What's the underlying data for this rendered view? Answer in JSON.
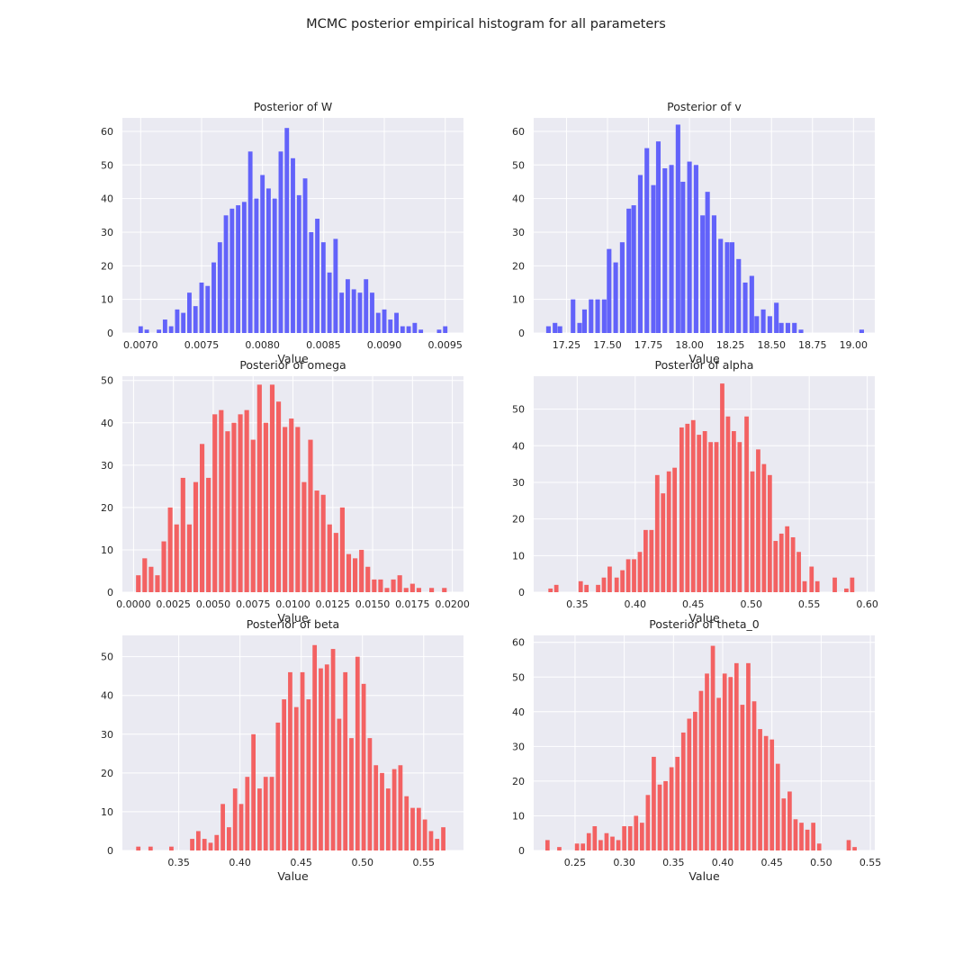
{
  "figure": {
    "title": "MCMC posterior empirical histogram for all parameters"
  },
  "chart_data": [
    {
      "type": "bar",
      "title": "Posterior of W",
      "xlabel": "Value",
      "ylabel": "",
      "color": "#5b5bfa",
      "grid": true,
      "xlim": [
        0.00685,
        0.00965
      ],
      "ylim": [
        0,
        64
      ],
      "xticks": [
        0.007,
        0.0075,
        0.008,
        0.0085,
        0.009,
        0.0095
      ],
      "xtick_labels": [
        "0.0070",
        "0.0075",
        "0.0080",
        "0.0085",
        "0.0090",
        "0.0095"
      ],
      "yticks": [
        0,
        10,
        20,
        30,
        40,
        50,
        60
      ],
      "x": [
        0.007,
        0.00705,
        0.00715,
        0.0072,
        0.00725,
        0.0073,
        0.00735,
        0.0074,
        0.00745,
        0.0075,
        0.00755,
        0.0076,
        0.00765,
        0.0077,
        0.00775,
        0.0078,
        0.00785,
        0.0079,
        0.00795,
        0.008,
        0.00805,
        0.0081,
        0.00815,
        0.0082,
        0.00825,
        0.0083,
        0.00835,
        0.0084,
        0.00845,
        0.0085,
        0.00855,
        0.0086,
        0.00865,
        0.0087,
        0.00875,
        0.0088,
        0.00885,
        0.0089,
        0.00895,
        0.009,
        0.00905,
        0.0091,
        0.00915,
        0.0092,
        0.00925,
        0.0093,
        0.00935,
        0.00945,
        0.0095
      ],
      "values": [
        2,
        1,
        1,
        4,
        2,
        7,
        6,
        12,
        8,
        15,
        14,
        21,
        27,
        35,
        37,
        38,
        39,
        54,
        40,
        47,
        43,
        40,
        54,
        61,
        52,
        41,
        46,
        30,
        34,
        27,
        18,
        28,
        12,
        16,
        13,
        12,
        16,
        12,
        6,
        7,
        4,
        6,
        2,
        2,
        3,
        1,
        0,
        1,
        2
      ],
      "bar_width": 3.6e-05
    },
    {
      "type": "bar",
      "title": "Posterior of v",
      "xlabel": "Value",
      "ylabel": "",
      "color": "#5b5bfa",
      "grid": true,
      "xlim": [
        17.05,
        19.13
      ],
      "ylim": [
        0,
        64
      ],
      "xticks": [
        17.25,
        17.5,
        17.75,
        18.0,
        18.25,
        18.5,
        18.75,
        19.0
      ],
      "xtick_labels": [
        "17.25",
        "17.50",
        "17.75",
        "18.00",
        "18.25",
        "18.50",
        "18.75",
        "19.00"
      ],
      "yticks": [
        0,
        10,
        20,
        30,
        40,
        50,
        60
      ],
      "x": [
        17.14,
        17.18,
        17.21,
        17.29,
        17.33,
        17.36,
        17.4,
        17.44,
        17.48,
        17.51,
        17.55,
        17.59,
        17.63,
        17.66,
        17.7,
        17.74,
        17.78,
        17.81,
        17.85,
        17.89,
        17.93,
        17.96,
        18.0,
        18.04,
        18.08,
        18.11,
        18.15,
        18.19,
        18.23,
        18.26,
        18.3,
        18.34,
        18.38,
        18.41,
        18.45,
        18.49,
        18.53,
        18.56,
        18.6,
        18.64,
        18.68,
        18.71,
        18.75,
        19.05
      ],
      "values": [
        2,
        3,
        2,
        10,
        3,
        7,
        10,
        10,
        10,
        25,
        21,
        27,
        37,
        38,
        47,
        55,
        44,
        57,
        49,
        50,
        62,
        45,
        51,
        50,
        35,
        42,
        35,
        28,
        27,
        27,
        22,
        15,
        17,
        5,
        7,
        5,
        9,
        3,
        3,
        3,
        1,
        0,
        0,
        1
      ],
      "bar_width": 0.028
    },
    {
      "type": "bar",
      "title": "Posterior of omega",
      "xlabel": "Value",
      "ylabel": "",
      "color": "#f35a5a",
      "grid": true,
      "xlim": [
        -0.0007,
        0.0207
      ],
      "ylim": [
        0,
        51
      ],
      "xticks": [
        0.0,
        0.0025,
        0.005,
        0.0075,
        0.01,
        0.0125,
        0.015,
        0.0175,
        0.02
      ],
      "xtick_labels": [
        "0.0000",
        "0.0025",
        "0.0050",
        "0.0075",
        "0.0100",
        "0.0125",
        "0.0150",
        "0.0175",
        "0.0200"
      ],
      "yticks": [
        0,
        10,
        20,
        30,
        40,
        50
      ],
      "x": [
        0.0003,
        0.0007,
        0.0011,
        0.0015,
        0.0019,
        0.0023,
        0.0027,
        0.0031,
        0.0035,
        0.0039,
        0.0043,
        0.0047,
        0.0051,
        0.0055,
        0.0059,
        0.0063,
        0.0067,
        0.0071,
        0.0075,
        0.0079,
        0.0083,
        0.0087,
        0.0091,
        0.0095,
        0.0099,
        0.0103,
        0.0107,
        0.0111,
        0.0115,
        0.0119,
        0.0123,
        0.0127,
        0.0131,
        0.0135,
        0.0139,
        0.0143,
        0.0147,
        0.0151,
        0.0155,
        0.0159,
        0.0163,
        0.0167,
        0.0171,
        0.0175,
        0.0179,
        0.0187,
        0.0195
      ],
      "values": [
        4,
        8,
        6,
        4,
        12,
        20,
        16,
        27,
        16,
        26,
        35,
        27,
        42,
        43,
        38,
        40,
        42,
        43,
        36,
        49,
        40,
        49,
        45,
        39,
        41,
        39,
        26,
        36,
        24,
        23,
        16,
        14,
        20,
        9,
        8,
        10,
        6,
        3,
        3,
        1,
        3,
        4,
        1,
        2,
        1,
        1,
        1
      ],
      "bar_width": 0.00029
    },
    {
      "type": "bar",
      "title": "Posterior of alpha",
      "xlabel": "Value",
      "ylabel": "",
      "color": "#f35a5a",
      "grid": true,
      "xlim": [
        0.3125,
        0.6065
      ],
      "ylim": [
        0,
        59
      ],
      "xticks": [
        0.35,
        0.4,
        0.45,
        0.5,
        0.55,
        0.6
      ],
      "xtick_labels": [
        "0.35",
        "0.40",
        "0.45",
        "0.50",
        "0.55",
        "0.60"
      ],
      "yticks": [
        0,
        10,
        20,
        30,
        40,
        50
      ],
      "x": [
        0.327,
        0.332,
        0.353,
        0.358,
        0.368,
        0.373,
        0.378,
        0.384,
        0.389,
        0.394,
        0.399,
        0.404,
        0.409,
        0.414,
        0.419,
        0.424,
        0.429,
        0.434,
        0.44,
        0.445,
        0.45,
        0.455,
        0.46,
        0.465,
        0.47,
        0.475,
        0.48,
        0.485,
        0.49,
        0.496,
        0.501,
        0.506,
        0.511,
        0.516,
        0.521,
        0.526,
        0.531,
        0.536,
        0.541,
        0.546,
        0.552,
        0.557,
        0.562,
        0.567,
        0.572,
        0.577,
        0.582,
        0.587,
        0.592
      ],
      "values": [
        1,
        2,
        3,
        2,
        2,
        4,
        7,
        4,
        6,
        9,
        9,
        11,
        17,
        17,
        32,
        27,
        33,
        34,
        45,
        46,
        47,
        43,
        44,
        41,
        41,
        57,
        48,
        44,
        41,
        48,
        33,
        39,
        35,
        32,
        14,
        16,
        18,
        15,
        11,
        3,
        7,
        3,
        0,
        0,
        4,
        0,
        1,
        4,
        0
      ],
      "bar_width": 0.0037
    },
    {
      "type": "bar",
      "title": "Posterior of beta",
      "xlabel": "Value",
      "ylabel": "",
      "color": "#f35a5a",
      "grid": true,
      "xlim": [
        0.304,
        0.5825
      ],
      "ylim": [
        0,
        55.5
      ],
      "xticks": [
        0.35,
        0.4,
        0.45,
        0.5,
        0.55
      ],
      "xtick_labels": [
        "0.35",
        "0.40",
        "0.45",
        "0.50",
        "0.55"
      ],
      "yticks": [
        0,
        10,
        20,
        30,
        40,
        50
      ],
      "x": [
        0.317,
        0.327,
        0.344,
        0.361,
        0.366,
        0.371,
        0.376,
        0.381,
        0.386,
        0.391,
        0.396,
        0.401,
        0.406,
        0.411,
        0.416,
        0.421,
        0.426,
        0.431,
        0.436,
        0.441,
        0.446,
        0.451,
        0.456,
        0.461,
        0.466,
        0.471,
        0.476,
        0.481,
        0.486,
        0.491,
        0.496,
        0.501,
        0.506,
        0.511,
        0.516,
        0.521,
        0.526,
        0.531,
        0.536,
        0.541,
        0.546,
        0.551,
        0.556,
        0.561,
        0.566
      ],
      "values": [
        1,
        1,
        1,
        3,
        5,
        3,
        2,
        4,
        12,
        6,
        16,
        12,
        19,
        30,
        16,
        19,
        19,
        33,
        39,
        46,
        37,
        46,
        39,
        53,
        47,
        48,
        52,
        34,
        46,
        29,
        50,
        43,
        29,
        22,
        20,
        16,
        21,
        22,
        14,
        11,
        11,
        8,
        5,
        3,
        6
      ],
      "bar_width": 0.0035
    },
    {
      "type": "bar",
      "title": "Posterior of theta_0",
      "xlabel": "Value",
      "ylabel": "",
      "color": "#f35a5a",
      "grid": true,
      "xlim": [
        0.208,
        0.5545
      ],
      "ylim": [
        0,
        62
      ],
      "xticks": [
        0.25,
        0.3,
        0.35,
        0.4,
        0.45,
        0.5,
        0.55
      ],
      "xtick_labels": [
        "0.25",
        "0.30",
        "0.35",
        "0.40",
        "0.45",
        "0.50",
        "0.55"
      ],
      "yticks": [
        0,
        10,
        20,
        30,
        40,
        50,
        60
      ],
      "x": [
        0.222,
        0.234,
        0.252,
        0.258,
        0.264,
        0.27,
        0.276,
        0.282,
        0.288,
        0.294,
        0.3,
        0.306,
        0.312,
        0.318,
        0.324,
        0.33,
        0.336,
        0.342,
        0.348,
        0.354,
        0.36,
        0.366,
        0.372,
        0.378,
        0.384,
        0.39,
        0.396,
        0.402,
        0.408,
        0.414,
        0.42,
        0.426,
        0.432,
        0.438,
        0.444,
        0.45,
        0.456,
        0.462,
        0.468,
        0.474,
        0.48,
        0.486,
        0.492,
        0.498,
        0.504,
        0.51,
        0.516,
        0.528,
        0.534
      ],
      "values": [
        3,
        1,
        2,
        2,
        5,
        7,
        3,
        5,
        4,
        3,
        7,
        7,
        10,
        8,
        16,
        27,
        19,
        20,
        24,
        27,
        34,
        38,
        40,
        46,
        51,
        59,
        44,
        51,
        50,
        54,
        42,
        54,
        43,
        35,
        33,
        32,
        25,
        15,
        17,
        9,
        8,
        6,
        8,
        2,
        0,
        0,
        0,
        3,
        1
      ],
      "bar_width": 0.0043
    }
  ]
}
